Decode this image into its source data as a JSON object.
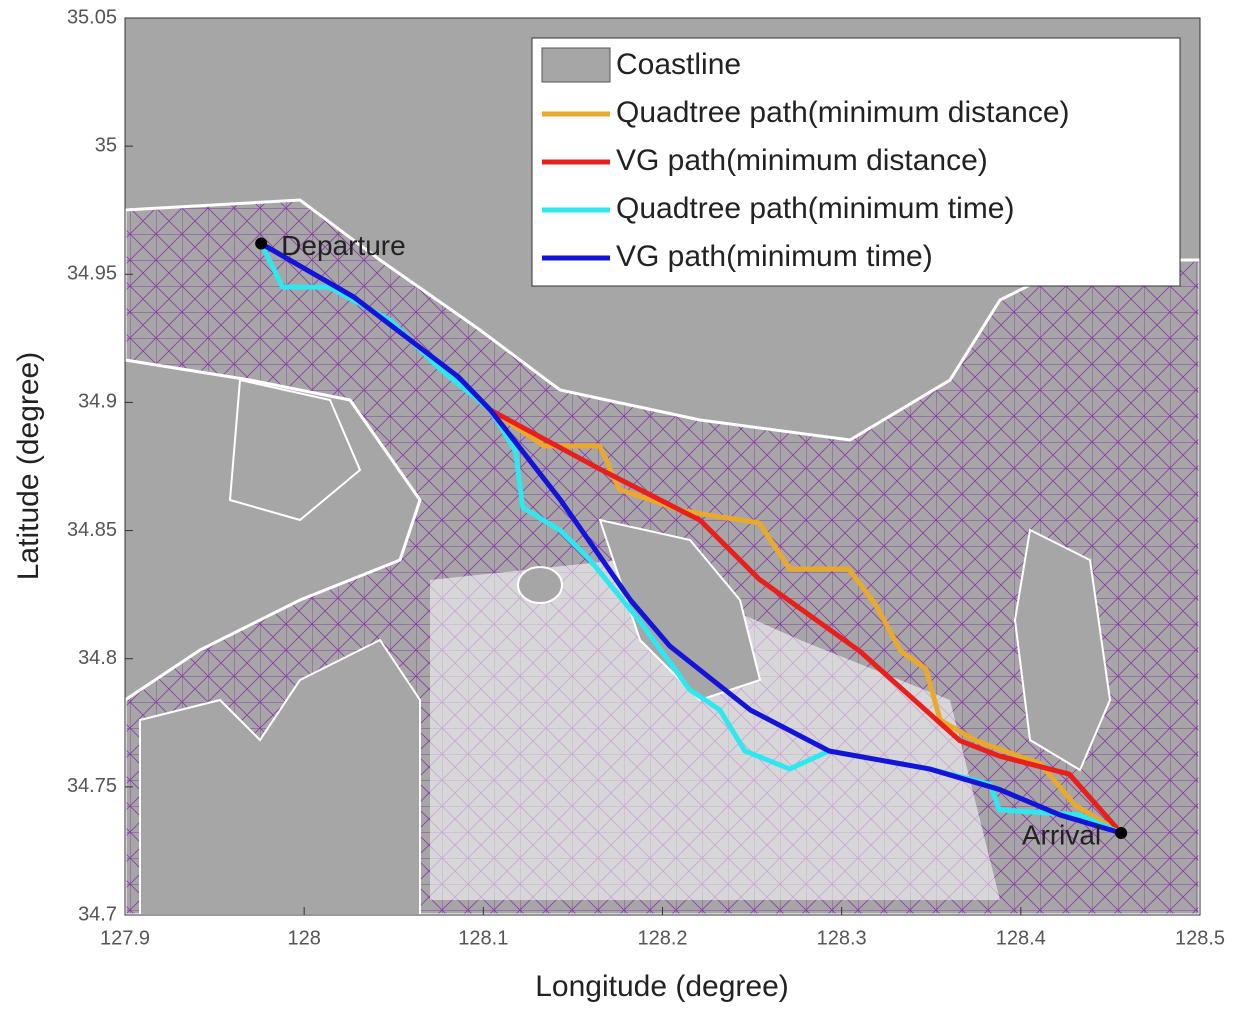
{
  "chart_data": {
    "type": "line",
    "xlabel": "Longitude (degree)",
    "ylabel": "Latitude (degree)",
    "xlim": [
      127.9,
      128.5
    ],
    "xticks": [
      127.9,
      128,
      128.1,
      128.2,
      128.3,
      128.4,
      128.5
    ],
    "ylim": [
      34.7,
      35.05
    ],
    "yticks": [
      34.7,
      34.75,
      34.8,
      34.85,
      34.9,
      34.95,
      35,
      35.05
    ],
    "coastline": {
      "name": "Coastline",
      "color": "#a6a6a6"
    },
    "legend": "upper right",
    "series": [
      {
        "name": "Quadtree path(minimum distance)",
        "color": "#e8a92c",
        "x": [
          128.104,
          128.134,
          128.165,
          128.176,
          128.21,
          128.226,
          128.254,
          128.271,
          128.304,
          128.319,
          128.333,
          128.347,
          128.355,
          128.375,
          128.411,
          128.43,
          128.456
        ],
        "values": [
          34.897,
          34.883,
          34.883,
          34.866,
          34.858,
          34.856,
          34.853,
          34.835,
          34.835,
          34.821,
          34.803,
          34.796,
          34.776,
          34.768,
          34.759,
          34.743,
          34.732
        ]
      },
      {
        "name": "VG path(minimum distance)",
        "color": "#e8201c",
        "x": [
          128.104,
          128.165,
          128.221,
          128.254,
          128.31,
          128.366,
          128.388,
          128.427,
          128.456
        ],
        "values": [
          34.897,
          34.874,
          34.854,
          34.831,
          34.803,
          34.768,
          34.762,
          34.755,
          34.732
        ]
      },
      {
        "name": "Quadtree path(minimum time)",
        "color": "#2ee8f0",
        "x": [
          127.976,
          127.988,
          128.014,
          128.048,
          128.076,
          128.104,
          128.118,
          128.122,
          128.143,
          128.159,
          128.187,
          128.215,
          128.232,
          128.246,
          128.271,
          128.293,
          128.349,
          128.383,
          128.388,
          128.433,
          128.456
        ],
        "values": [
          34.962,
          34.945,
          34.945,
          34.932,
          34.913,
          34.897,
          34.881,
          34.859,
          34.85,
          34.839,
          34.815,
          34.788,
          34.78,
          34.764,
          34.757,
          34.764,
          34.757,
          34.751,
          34.741,
          34.739,
          34.732
        ]
      },
      {
        "name": "VG path(minimum time)",
        "color": "#1414d8",
        "x": [
          127.976,
          128.028,
          128.086,
          128.104,
          128.143,
          128.182,
          128.204,
          128.249,
          128.293,
          128.349,
          128.388,
          128.422,
          128.456
        ],
        "values": [
          34.962,
          34.941,
          34.91,
          34.897,
          34.862,
          34.823,
          34.805,
          34.78,
          34.764,
          34.757,
          34.749,
          34.739,
          34.732
        ]
      }
    ],
    "annotations": [
      {
        "text": "Departure",
        "x": 127.976,
        "y": 34.962
      },
      {
        "text": "Arrival",
        "x": 128.456,
        "y": 34.732
      }
    ]
  }
}
